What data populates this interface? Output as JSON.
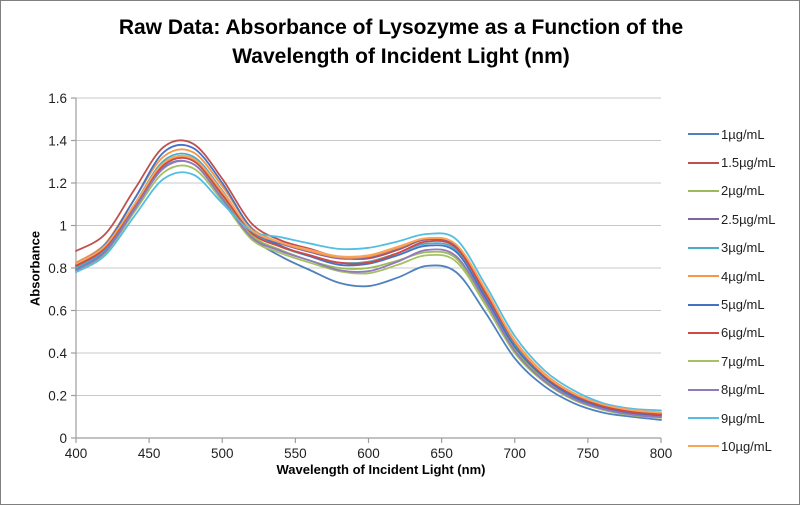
{
  "page": {
    "background": "#ffffff",
    "border_color": "#7f7f7f"
  },
  "chart_data": {
    "type": "line",
    "title": "Raw Data: Absorbance of Lysozyme as a Function of the Wavelength of Incident Light (nm)",
    "xlabel": "Wavelength of Incident Light (nm)",
    "ylabel": "Absorbance",
    "xlim": [
      400,
      800
    ],
    "ylim": [
      0,
      1.6
    ],
    "x_ticks": [
      400,
      450,
      500,
      550,
      600,
      650,
      700,
      750,
      800
    ],
    "y_ticks": [
      0,
      0.2,
      0.4,
      0.6,
      0.8,
      1,
      1.2,
      1.4,
      1.6
    ],
    "grid": "horizontal",
    "grid_color": "#c8c8c8",
    "axis_color": "#9e9e9e",
    "legend_position": "right",
    "x": [
      400,
      420,
      440,
      460,
      480,
      500,
      520,
      540,
      560,
      580,
      600,
      620,
      640,
      660,
      680,
      700,
      720,
      740,
      760,
      780,
      800
    ],
    "series": [
      {
        "name": "1µg/mL",
        "color": "#4F81BD",
        "values": [
          0.795,
          0.88,
          1.08,
          1.275,
          1.29,
          1.13,
          0.945,
          0.855,
          0.79,
          0.73,
          0.715,
          0.755,
          0.81,
          0.78,
          0.59,
          0.375,
          0.245,
          0.165,
          0.12,
          0.1,
          0.085
        ]
      },
      {
        "name": "1.5µg/mL",
        "color": "#C0504D",
        "values": [
          0.88,
          0.96,
          1.17,
          1.37,
          1.385,
          1.22,
          1.01,
          0.93,
          0.89,
          0.85,
          0.845,
          0.885,
          0.935,
          0.9,
          0.685,
          0.45,
          0.3,
          0.205,
          0.15,
          0.125,
          0.112
        ]
      },
      {
        "name": "2µg/mL",
        "color": "#9BBB59",
        "values": [
          0.805,
          0.895,
          1.095,
          1.29,
          1.305,
          1.14,
          0.955,
          0.885,
          0.835,
          0.8,
          0.8,
          0.835,
          0.875,
          0.845,
          0.635,
          0.42,
          0.275,
          0.19,
          0.14,
          0.113,
          0.1
        ]
      },
      {
        "name": "2.5µg/mL",
        "color": "#8064A2",
        "values": [
          0.815,
          0.9,
          1.1,
          1.295,
          1.315,
          1.16,
          0.975,
          0.915,
          0.875,
          0.845,
          0.85,
          0.89,
          0.935,
          0.905,
          0.69,
          0.455,
          0.3,
          0.21,
          0.155,
          0.128,
          0.115
        ]
      },
      {
        "name": "3µg/mL",
        "color": "#4BACC6",
        "values": [
          0.8,
          0.89,
          1.1,
          1.305,
          1.325,
          1.165,
          0.97,
          0.9,
          0.855,
          0.825,
          0.83,
          0.87,
          0.915,
          0.885,
          0.67,
          0.44,
          0.29,
          0.2,
          0.148,
          0.12,
          0.108
        ]
      },
      {
        "name": "4µg/mL",
        "color": "#F79646",
        "values": [
          0.825,
          0.915,
          1.125,
          1.325,
          1.345,
          1.185,
          0.99,
          0.92,
          0.88,
          0.85,
          0.855,
          0.895,
          0.94,
          0.91,
          0.695,
          0.46,
          0.305,
          0.212,
          0.157,
          0.13,
          0.118
        ]
      },
      {
        "name": "5µg/mL",
        "color": "#4472C4",
        "values": [
          0.82,
          0.91,
          1.125,
          1.345,
          1.365,
          1.2,
          0.985,
          0.905,
          0.855,
          0.815,
          0.82,
          0.86,
          0.905,
          0.875,
          0.66,
          0.43,
          0.285,
          0.195,
          0.145,
          0.117,
          0.105
        ]
      },
      {
        "name": "6µg/mL",
        "color": "#D04A42",
        "values": [
          0.81,
          0.895,
          1.095,
          1.285,
          1.305,
          1.145,
          0.965,
          0.9,
          0.86,
          0.825,
          0.825,
          0.87,
          0.925,
          0.895,
          0.68,
          0.45,
          0.295,
          0.205,
          0.15,
          0.122,
          0.11
        ]
      },
      {
        "name": "7µg/mL",
        "color": "#A5C163",
        "values": [
          0.785,
          0.87,
          1.065,
          1.25,
          1.27,
          1.115,
          0.935,
          0.87,
          0.825,
          0.785,
          0.775,
          0.815,
          0.86,
          0.83,
          0.625,
          0.4,
          0.265,
          0.18,
          0.133,
          0.107,
          0.095
        ]
      },
      {
        "name": "8µg/mL",
        "color": "#9378BE",
        "values": [
          0.79,
          0.875,
          1.075,
          1.27,
          1.29,
          1.125,
          0.945,
          0.88,
          0.835,
          0.79,
          0.785,
          0.83,
          0.885,
          0.855,
          0.645,
          0.41,
          0.27,
          0.185,
          0.137,
          0.11,
          0.098
        ]
      },
      {
        "name": "9µg/mL",
        "color": "#53BDE4",
        "values": [
          0.78,
          0.86,
          1.045,
          1.22,
          1.24,
          1.105,
          0.975,
          0.945,
          0.915,
          0.89,
          0.895,
          0.925,
          0.96,
          0.935,
          0.72,
          0.48,
          0.32,
          0.225,
          0.165,
          0.138,
          0.13
        ]
      },
      {
        "name": "10µg/mL",
        "color": "#FAA45A",
        "values": [
          0.82,
          0.905,
          1.1,
          1.295,
          1.315,
          1.16,
          0.98,
          0.92,
          0.885,
          0.855,
          0.86,
          0.9,
          0.94,
          0.91,
          0.7,
          0.455,
          0.3,
          0.21,
          0.158,
          0.132,
          0.12
        ]
      }
    ]
  }
}
